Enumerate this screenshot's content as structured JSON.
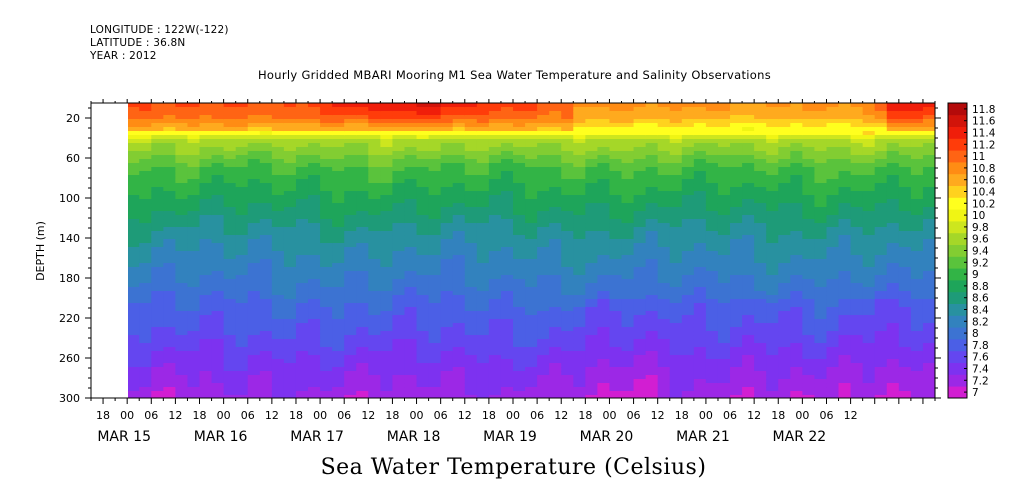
{
  "header": {
    "longitude": "LONGITUDE : 122W(-122)",
    "latitude": "LATITUDE : 36.8N",
    "year": "YEAR : 2012"
  },
  "chart_data": {
    "type": "heatmap",
    "title": "Hourly Gridded MBARI Mooring M1 Sea Water Temperature and Salinity Observations",
    "xlabel": "Sea Water Temperature (Celsius)",
    "ylabel": "DEPTH (m)",
    "y_ticks": [
      20,
      60,
      100,
      140,
      180,
      220,
      260,
      300
    ],
    "ylim": [
      300,
      5
    ],
    "x_hour_ticks": [
      "18",
      "00",
      "06",
      "12",
      "18",
      "00",
      "06",
      "12",
      "18",
      "00",
      "06",
      "12",
      "18",
      "00",
      "06",
      "12",
      "18",
      "00",
      "06",
      "12",
      "18",
      "00",
      "06",
      "12",
      "18",
      "00",
      "06",
      "12",
      "18",
      "00",
      "06",
      "12"
    ],
    "x_day_labels": [
      "MAR 15",
      "MAR 16",
      "MAR 17",
      "MAR 18",
      "MAR 19",
      "MAR 20",
      "MAR 21",
      "MAR 22"
    ],
    "xlim_hours": [
      -9,
      201
    ],
    "data_start_hour": 0,
    "data_end_hour": 201,
    "colorbar": {
      "levels": [
        7,
        7.2,
        7.4,
        7.6,
        7.8,
        8,
        8.2,
        8.4,
        8.6,
        8.8,
        9,
        9.2,
        9.4,
        9.6,
        9.8,
        10,
        10.2,
        10.4,
        10.6,
        10.8,
        11,
        11.2,
        11.4,
        11.6,
        11.8
      ],
      "labels": [
        "7",
        "7.2",
        "7.4",
        "7.6",
        "7.8",
        "8",
        "8.2",
        "8.4",
        "8.6",
        "8.8",
        "9",
        "9.2",
        "9.4",
        "9.6",
        "9.8",
        "10",
        "10.2",
        "10.4",
        "10.6",
        "10.8",
        "11",
        "11.2",
        "11.4",
        "11.6",
        "11.8"
      ],
      "colors": [
        "#d21ed2",
        "#9c28e6",
        "#7d32f0",
        "#6446f0",
        "#4b5fe6",
        "#3c73d2",
        "#3282be",
        "#2891a0",
        "#1e9b78",
        "#1ea55a",
        "#32b446",
        "#5ac33c",
        "#82cd32",
        "#a5d728",
        "#cde61e",
        "#f0f514",
        "#ffff1e",
        "#ffd21e",
        "#ffaa1e",
        "#ff8c14",
        "#ff6414",
        "#ff3c0a",
        "#f01e0a",
        "#d2140a",
        "#b40a0a"
      ]
    },
    "profile": [
      {
        "depth": 5,
        "temp": 11.2
      },
      {
        "depth": 20,
        "temp": 11.0
      },
      {
        "depth": 32,
        "temp": 10.6
      },
      {
        "depth": 38,
        "temp": 10.0
      },
      {
        "depth": 44,
        "temp": 9.7
      },
      {
        "depth": 55,
        "temp": 9.5
      },
      {
        "depth": 70,
        "temp": 9.2
      },
      {
        "depth": 90,
        "temp": 9.0
      },
      {
        "depth": 110,
        "temp": 8.8
      },
      {
        "depth": 140,
        "temp": 8.5
      },
      {
        "depth": 175,
        "temp": 8.25
      },
      {
        "depth": 205,
        "temp": 8.0
      },
      {
        "depth": 240,
        "temp": 7.75
      },
      {
        "depth": 270,
        "temp": 7.5
      },
      {
        "depth": 300,
        "temp": 7.3
      }
    ]
  }
}
